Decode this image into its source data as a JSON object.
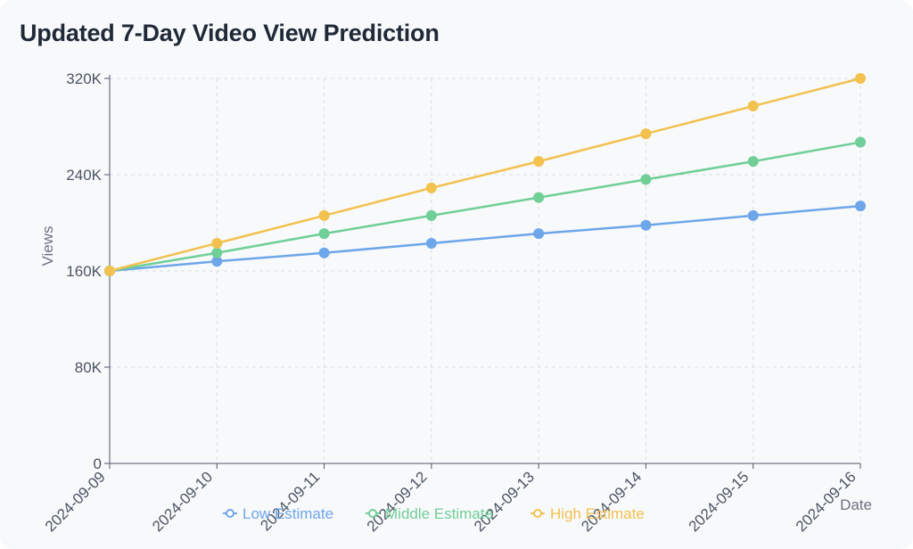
{
  "title": "Updated 7-Day Video View Prediction",
  "chart_data": {
    "type": "line",
    "title": "Updated 7-Day Video View Prediction",
    "xlabel": "Date",
    "ylabel": "Views",
    "x": [
      "2024-09-09",
      "2024-09-10",
      "2024-09-11",
      "2024-09-12",
      "2024-09-13",
      "2024-09-14",
      "2024-09-15",
      "2024-09-16"
    ],
    "ylim": [
      0,
      320000
    ],
    "yticks": [
      0,
      80000,
      160000,
      240000,
      320000
    ],
    "ytick_labels": [
      "0",
      "80K",
      "160K",
      "240K",
      "320K"
    ],
    "grid": true,
    "legend_position": "bottom",
    "series": [
      {
        "name": "Low Estimate",
        "color": "#6ea6ea",
        "values": [
          160000,
          168000,
          175000,
          183000,
          191000,
          198000,
          206000,
          214000
        ]
      },
      {
        "name": "Middle Estimate",
        "color": "#6fcf97",
        "values": [
          160000,
          175000,
          191000,
          206000,
          221000,
          236000,
          251000,
          267000
        ]
      },
      {
        "name": "High Estimate",
        "color": "#f2c14e",
        "values": [
          160000,
          183000,
          206000,
          229000,
          251000,
          274000,
          297000,
          320000
        ]
      }
    ]
  }
}
